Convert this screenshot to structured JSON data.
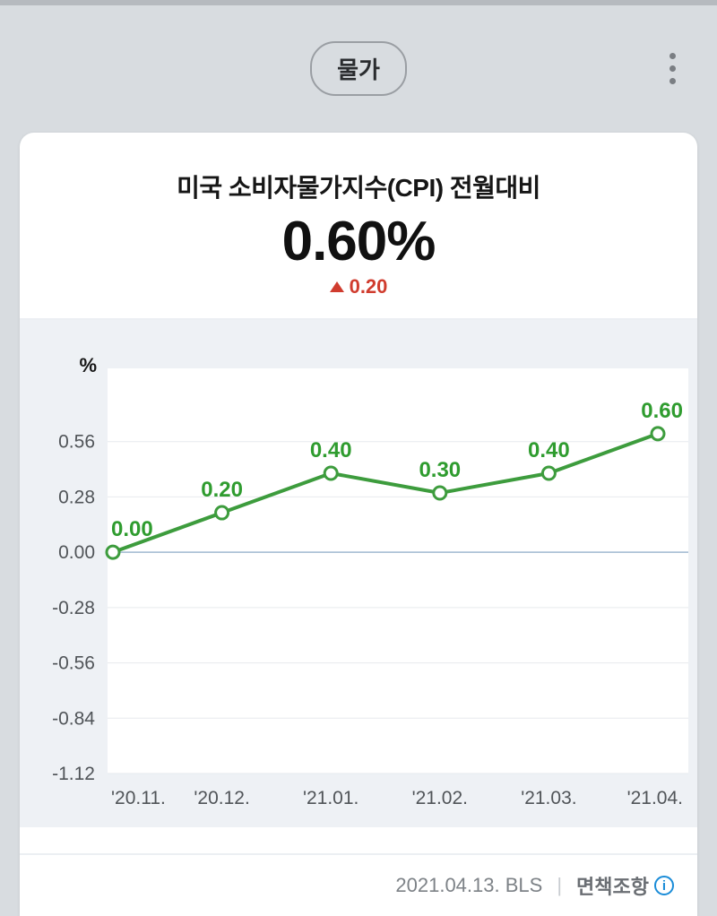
{
  "pill_label": "물가",
  "card": {
    "title": "미국 소비자물가지수(CPI) 전월대비",
    "big_value": "0.60%",
    "delta_value": "0.20",
    "delta_direction": "up",
    "delta_color": "#d03c2e"
  },
  "chart": {
    "type": "line",
    "unit_label": "%",
    "background_color": "#eef1f5",
    "plot_background": "#ffffff",
    "grid_color": "#e7eaee",
    "zero_line_color": "#9fb8d0",
    "line_color": "#3d9c3d",
    "line_width": 4,
    "marker_fill": "#ffffff",
    "marker_stroke": "#3d9c3d",
    "marker_stroke_width": 3,
    "marker_radius": 7,
    "label_color": "#2f9c2f",
    "label_fontsize": 24,
    "axis_tick_color": "#505458",
    "axis_tick_fontsize": 21,
    "ylim": [
      -1.12,
      0.84
    ],
    "yticks": [
      0.56,
      0.28,
      0.0,
      -0.28,
      -0.56,
      -0.84,
      -1.12
    ],
    "ytick_labels": [
      "0.56",
      "0.28",
      "0.00",
      "-0.28",
      "-0.56",
      "-0.84",
      "-1.12"
    ],
    "x_labels": [
      "'20.11.",
      "'20.12.",
      "'21.01.",
      "'21.02.",
      "'21.03.",
      "'21.04."
    ],
    "values": [
      0.0,
      0.2,
      0.4,
      0.3,
      0.4,
      0.6
    ],
    "value_labels": [
      "0.00",
      "0.20",
      "0.40",
      "0.30",
      "0.40",
      "0.60"
    ]
  },
  "footer": {
    "date_source": "2021.04.13. BLS",
    "disclaimer_label": "면책조항"
  }
}
